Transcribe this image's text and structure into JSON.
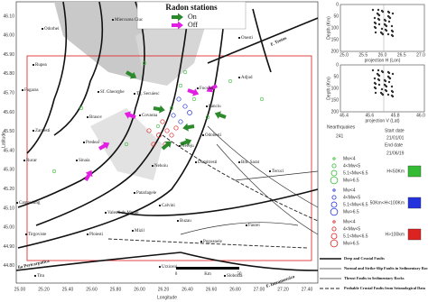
{
  "map": {
    "legend": {
      "title": "Radon stations",
      "on": "On",
      "off": "Off",
      "on_color": "#2c8a2c",
      "off_color": "#e11ee1"
    },
    "y_label": "Latitude",
    "x_label": "Longitude",
    "y_ticks": [
      "46.10",
      "46.00",
      "45.90",
      "45.80",
      "45.70",
      "45.60",
      "45.50",
      "45.40",
      "45.30",
      "45.20",
      "45.10",
      "45.00",
      "44.90",
      "44.80"
    ],
    "x_ticks": [
      "25.00",
      "25.20",
      "25.40",
      "25.60",
      "25.80",
      "26.00",
      "26.20",
      "26.40",
      "26.60",
      "26.80",
      "27.00",
      "27.20",
      "27.40"
    ],
    "places": [
      "Odorhei",
      "Miercurea Ciuc",
      "Onesti",
      "Rupea",
      "Fagaras",
      "Sf. Gheorghe",
      "Tg. Secuiesc",
      "Covasna",
      "Brasov",
      "Adjud",
      "Focsani",
      "Panciu",
      "Odobesti",
      "Nereju",
      "Dumitresti",
      "Bm. Sarat",
      "Zarnesti",
      "Predeal",
      "Sinaia",
      "Rucar",
      "Nehoiu",
      "Campulung",
      "Patarlagele",
      "Calvini",
      "Valenii de Munte",
      "Buzau",
      "Mizil",
      "Pogoanele",
      "Faurei",
      "Tirgoviste",
      "Ploiesti",
      "Urziceni",
      "Slobozia",
      "Titu",
      "Tecuci"
    ],
    "fault_labels": [
      "F. Trotus",
      "lia Pericarpatica",
      "F. Intramoesica"
    ],
    "scale": {
      "zero": "0",
      "unit": "Km",
      "max": "50"
    }
  },
  "panel": {
    "depth_label": "Depth (Km)",
    "plot_h": {
      "caption": "projection H (Lon)",
      "x_ticks": [
        "25.0",
        "25.5",
        "26.0",
        "26.5",
        "27.0"
      ],
      "y_ticks": [
        "0",
        "50",
        "100",
        "150",
        "200"
      ]
    },
    "plot_v": {
      "caption": "projection V (Lat)",
      "x_ticks": [
        "45.4",
        "45.6",
        "45.8",
        "46.0"
      ],
      "y_ticks": [
        "0",
        "50",
        "100",
        "150",
        "200"
      ]
    },
    "count_label": "Nearthquakes",
    "count": "241",
    "start_label": "Start date",
    "start": "21/01/01",
    "end_label": "End date",
    "end": "21/06/19",
    "groups": [
      {
        "items": [
          "Mw<4",
          "4<Mw<5",
          "5.1<Mw<6.5",
          "Mw>6.5"
        ],
        "depth": "H<50Km",
        "color": "#33bb33"
      },
      {
        "items": [
          "Mw<4",
          "4<Mw<5",
          "5.1<Mw<6.5",
          "Mw>6.5"
        ],
        "depth": "50Km<H<100Km",
        "color": "#2233dd"
      },
      {
        "items": [
          "Mw<4",
          "4<Mw<5",
          "5.1<Mw<6.5",
          "Mw>6.5"
        ],
        "depth": "H>100km",
        "color": "#dd2222"
      }
    ]
  },
  "fault_legend": [
    "Deep and Crustal Faults",
    "Normal and Strike-Slip Faults in Sedimentary Rocks",
    "Thrust Faults in Sedimentary Rocks",
    "Probable Crustal Faults from Seismological Data"
  ]
}
